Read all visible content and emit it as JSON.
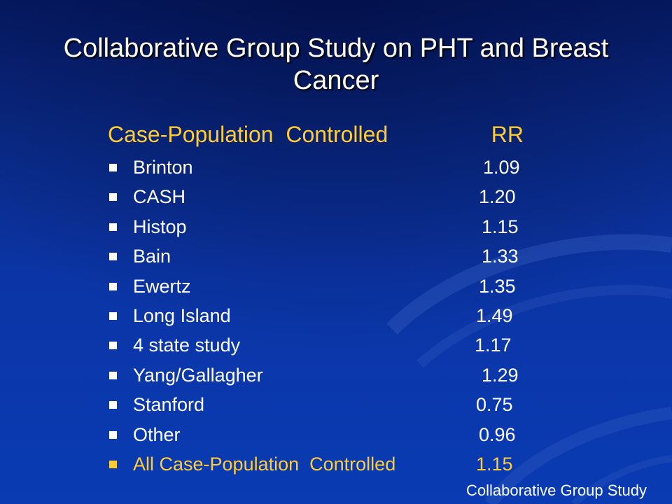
{
  "slide": {
    "title": "Collaborative Group Study on PHT and Breast Cancer",
    "header": {
      "label": "Case-Population  Controlled",
      "rr": "RR"
    },
    "rows": [
      {
        "name": "Brinton",
        "rr": "1.09"
      },
      {
        "name": "CASH",
        "rr": "1.20"
      },
      {
        "name": "Histop",
        "rr": "1.15"
      },
      {
        "name": "Bain",
        "rr": "1.33"
      },
      {
        "name": "Ewertz",
        "rr": "1.35"
      },
      {
        "name": "Long Island",
        "rr": "1.49"
      },
      {
        "name": "4 state study",
        "rr": "1.17"
      },
      {
        "name": "Yang/Gallagher",
        "rr": "1.29"
      },
      {
        "name": "Stanford",
        "rr": "0.75"
      },
      {
        "name": "Other",
        "rr": "0.96"
      }
    ],
    "summary": {
      "name": "All Case-Population  Controlled",
      "rr": "1.15"
    },
    "footer": "Collaborative Group Study"
  },
  "colors": {
    "background": "#0a35a6",
    "title": "#ffffff",
    "accent": "#ffcc33",
    "text": "#ffffff"
  }
}
